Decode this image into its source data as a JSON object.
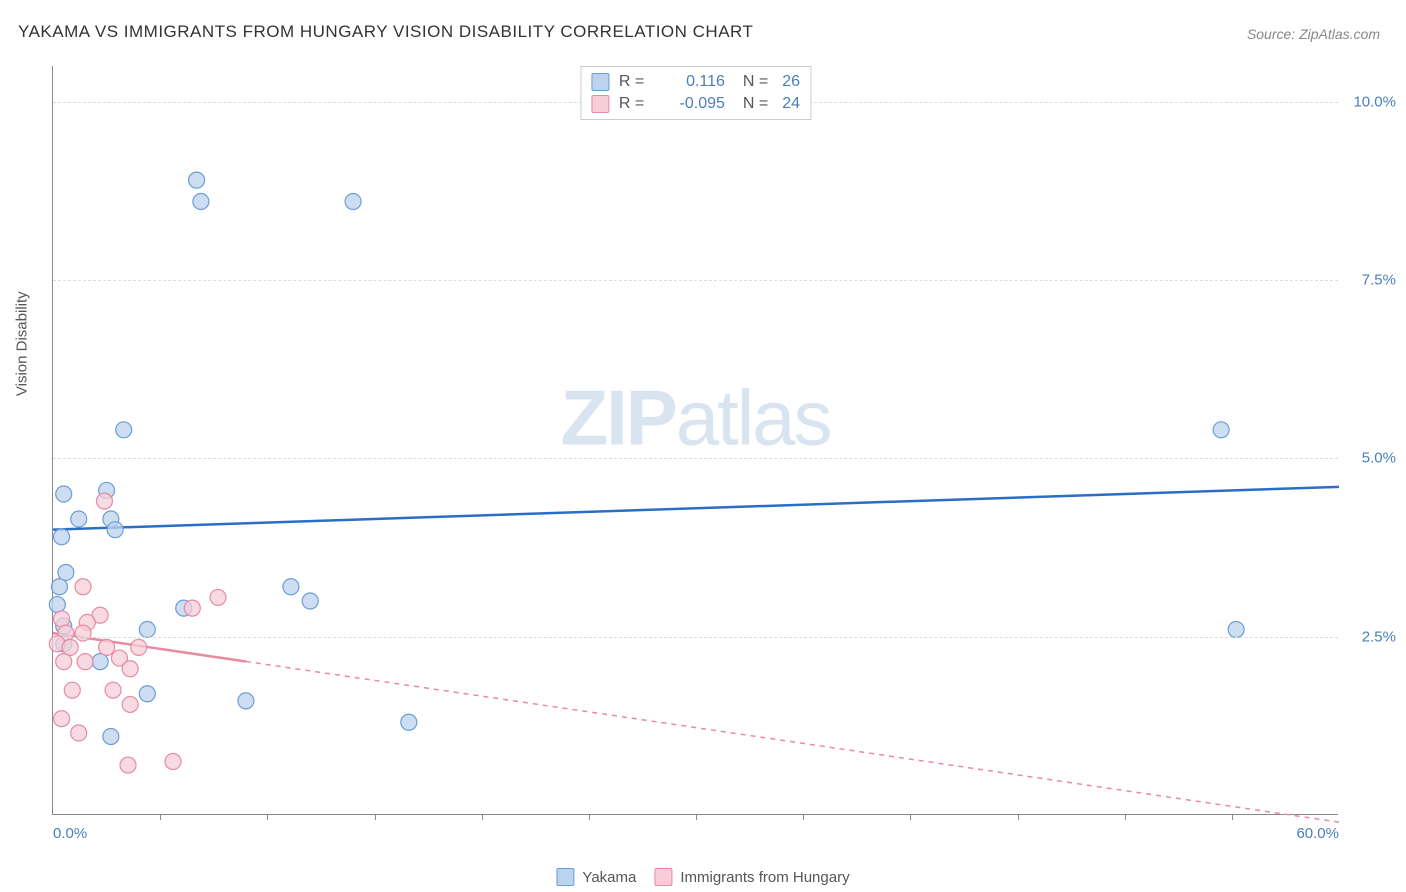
{
  "title": "YAKAMA VS IMMIGRANTS FROM HUNGARY VISION DISABILITY CORRELATION CHART",
  "source": "Source: ZipAtlas.com",
  "watermark_bold": "ZIP",
  "watermark_light": "atlas",
  "y_axis_label": "Vision Disability",
  "chart": {
    "type": "scatter",
    "x_range": [
      0,
      60
    ],
    "y_range": [
      0,
      10.5
    ],
    "background": "#ffffff",
    "grid_color": "#dddddd",
    "axis_color": "#888888",
    "y_ticks": [
      {
        "value": 2.5,
        "label": "2.5%"
      },
      {
        "value": 5.0,
        "label": "5.0%"
      },
      {
        "value": 7.5,
        "label": "7.5%"
      },
      {
        "value": 10.0,
        "label": "10.0%"
      }
    ],
    "x_ticks_minor": [
      5,
      10,
      15,
      20,
      25,
      30,
      35,
      40,
      45,
      50,
      55
    ],
    "x_ticks_labeled": [
      {
        "value": 0,
        "label": "0.0%"
      },
      {
        "value": 60,
        "label": "60.0%"
      }
    ],
    "series": [
      {
        "name": "Yakama",
        "color_fill": "#bcd3ef",
        "color_stroke": "#6a9ed4",
        "trend_color": "#2b6fc4",
        "trend_dash": "none",
        "trend": {
          "x1": 0,
          "y1": 4.0,
          "x2": 60,
          "y2": 4.6
        },
        "correlation": {
          "R_label": "R =",
          "R": "0.116",
          "N_label": "N =",
          "N": "26"
        },
        "marker_radius": 8,
        "points": [
          {
            "x": 6.7,
            "y": 8.9
          },
          {
            "x": 6.9,
            "y": 8.6
          },
          {
            "x": 14.0,
            "y": 8.6
          },
          {
            "x": 3.3,
            "y": 5.4
          },
          {
            "x": 54.5,
            "y": 5.4
          },
          {
            "x": 0.5,
            "y": 4.5
          },
          {
            "x": 2.5,
            "y": 4.55
          },
          {
            "x": 1.2,
            "y": 4.15
          },
          {
            "x": 2.7,
            "y": 4.15
          },
          {
            "x": 0.4,
            "y": 3.9
          },
          {
            "x": 2.9,
            "y": 4.0
          },
          {
            "x": 0.3,
            "y": 3.2
          },
          {
            "x": 0.6,
            "y": 3.4
          },
          {
            "x": 11.1,
            "y": 3.2
          },
          {
            "x": 12.0,
            "y": 3.0
          },
          {
            "x": 0.2,
            "y": 2.95
          },
          {
            "x": 6.1,
            "y": 2.9
          },
          {
            "x": 4.4,
            "y": 2.6
          },
          {
            "x": 55.2,
            "y": 2.6
          },
          {
            "x": 0.5,
            "y": 2.4
          },
          {
            "x": 2.2,
            "y": 2.15
          },
          {
            "x": 4.4,
            "y": 1.7
          },
          {
            "x": 9.0,
            "y": 1.6
          },
          {
            "x": 16.6,
            "y": 1.3
          },
          {
            "x": 2.7,
            "y": 1.1
          },
          {
            "x": 0.5,
            "y": 2.65
          }
        ]
      },
      {
        "name": "Immigrants from Hungary",
        "color_fill": "#f6cdd8",
        "color_stroke": "#e88aa3",
        "trend_color": "#e88aa3",
        "trend_dash": "5,5",
        "trend_solid_until": 9,
        "trend": {
          "x1": 0,
          "y1": 2.55,
          "x2": 60,
          "y2": -0.1
        },
        "correlation": {
          "R_label": "R =",
          "R": "-0.095",
          "N_label": "N =",
          "N": "24"
        },
        "marker_radius": 8,
        "points": [
          {
            "x": 2.4,
            "y": 4.4
          },
          {
            "x": 1.4,
            "y": 3.2
          },
          {
            "x": 7.7,
            "y": 3.05
          },
          {
            "x": 6.5,
            "y": 2.9
          },
          {
            "x": 0.4,
            "y": 2.75
          },
          {
            "x": 2.2,
            "y": 2.8
          },
          {
            "x": 1.6,
            "y": 2.7
          },
          {
            "x": 0.6,
            "y": 2.55
          },
          {
            "x": 1.4,
            "y": 2.55
          },
          {
            "x": 0.2,
            "y": 2.4
          },
          {
            "x": 0.8,
            "y": 2.35
          },
          {
            "x": 4.0,
            "y": 2.35
          },
          {
            "x": 2.5,
            "y": 2.35
          },
          {
            "x": 0.5,
            "y": 2.15
          },
          {
            "x": 1.5,
            "y": 2.15
          },
          {
            "x": 3.1,
            "y": 2.2
          },
          {
            "x": 3.6,
            "y": 2.05
          },
          {
            "x": 0.9,
            "y": 1.75
          },
          {
            "x": 2.8,
            "y": 1.75
          },
          {
            "x": 3.6,
            "y": 1.55
          },
          {
            "x": 1.2,
            "y": 1.15
          },
          {
            "x": 0.4,
            "y": 1.35
          },
          {
            "x": 3.5,
            "y": 0.7
          },
          {
            "x": 5.6,
            "y": 0.75
          }
        ]
      }
    ],
    "legend_bottom": [
      {
        "label": "Yakama",
        "fill": "#bcd3ef",
        "stroke": "#6a9ed4"
      },
      {
        "label": "Immigrants from Hungary",
        "fill": "#f6cdd8",
        "stroke": "#e88aa3"
      }
    ]
  }
}
